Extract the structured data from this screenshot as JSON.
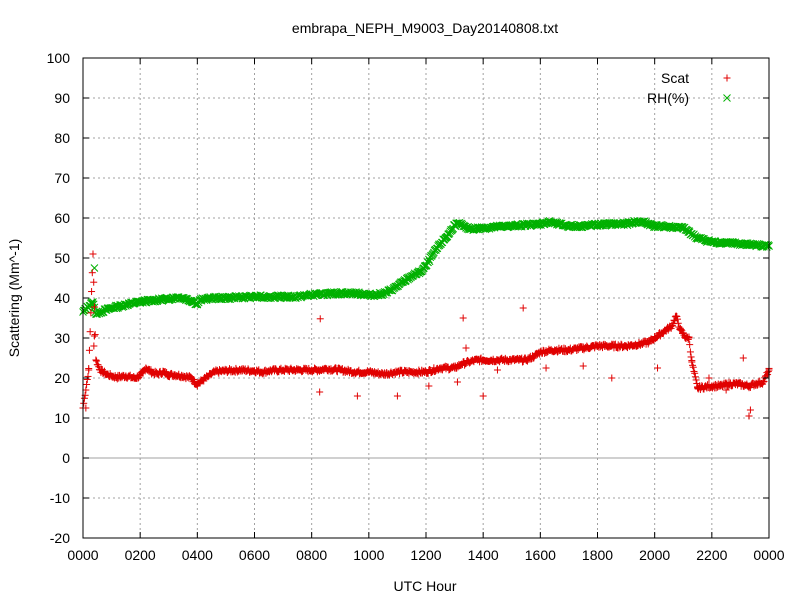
{
  "chart_data": {
    "type": "scatter",
    "title": "embrapa_NEPH_M9003_Day20140808.txt",
    "xlabel": "UTC Hour",
    "ylabel": "Scattering (Mm^-1)",
    "xlim": [
      0,
      24
    ],
    "ylim": [
      -20,
      100
    ],
    "x_ticks": [
      {
        "value": 0,
        "label": "0000"
      },
      {
        "value": 2,
        "label": "0200"
      },
      {
        "value": 4,
        "label": "0400"
      },
      {
        "value": 6,
        "label": "0600"
      },
      {
        "value": 8,
        "label": "0800"
      },
      {
        "value": 10,
        "label": "1000"
      },
      {
        "value": 12,
        "label": "1200"
      },
      {
        "value": 14,
        "label": "1400"
      },
      {
        "value": 16,
        "label": "1600"
      },
      {
        "value": 18,
        "label": "1800"
      },
      {
        "value": 20,
        "label": "2000"
      },
      {
        "value": 22,
        "label": "2200"
      },
      {
        "value": 24,
        "label": "0000"
      }
    ],
    "y_ticks": [
      {
        "value": -20,
        "label": "-20"
      },
      {
        "value": -10,
        "label": "-10"
      },
      {
        "value": 0,
        "label": "0"
      },
      {
        "value": 10,
        "label": "10"
      },
      {
        "value": 20,
        "label": "20"
      },
      {
        "value": 30,
        "label": "30"
      },
      {
        "value": 40,
        "label": "40"
      },
      {
        "value": 50,
        "label": "50"
      },
      {
        "value": 60,
        "label": "60"
      },
      {
        "value": 70,
        "label": "70"
      },
      {
        "value": 80,
        "label": "80"
      },
      {
        "value": 90,
        "label": "90"
      },
      {
        "value": 100,
        "label": "100"
      }
    ],
    "grid": true,
    "zero_line": true,
    "legend_position": "top-right",
    "series": [
      {
        "name": "Scat",
        "marker": "plus",
        "color": "#e00000",
        "x": [
          0.0,
          0.2,
          0.35,
          0.45,
          0.6,
          0.8,
          1.0,
          1.2,
          1.5,
          1.8,
          2.0,
          2.1,
          2.2,
          2.4,
          2.6,
          2.8,
          3.0,
          3.2,
          3.5,
          3.8,
          3.9,
          4.0,
          4.2,
          4.4,
          4.6,
          5.0,
          5.5,
          6.0,
          6.3,
          6.5,
          7.0,
          7.5,
          8.0,
          8.25,
          8.5,
          9.0,
          9.5,
          10.0,
          10.5,
          11.0,
          11.5,
          12.0,
          12.5,
          13.0,
          13.25,
          13.5,
          13.8,
          14.0,
          14.5,
          15.0,
          15.5,
          15.8,
          16.0,
          16.5,
          17.0,
          17.5,
          17.8,
          18.0,
          18.5,
          19.0,
          19.5,
          19.8,
          20.0,
          20.3,
          20.6,
          20.75,
          20.9,
          21.1,
          21.2,
          21.3,
          21.5,
          21.8,
          22.0,
          22.3,
          22.6,
          22.9,
          23.3,
          23.5,
          23.8,
          24.0,
          0.1,
          0.38,
          0.4,
          8.3,
          8.28,
          9.6,
          11.0,
          12.1,
          13.1,
          13.3,
          13.4,
          14.0,
          14.5,
          15.4,
          16.2,
          17.5,
          18.5,
          20.1,
          21.9,
          22.5,
          23.1,
          23.3,
          23.35
        ],
        "y": [
          12.5,
          22.0,
          51.0,
          24.5,
          22.0,
          21.0,
          20.5,
          20.2,
          20.5,
          20.0,
          20.5,
          21.5,
          22.5,
          21.5,
          21.0,
          21.5,
          20.8,
          20.8,
          20.5,
          20.0,
          19.0,
          18.5,
          19.5,
          20.5,
          21.5,
          21.8,
          22.0,
          21.8,
          21.5,
          21.8,
          22.0,
          22.0,
          22.0,
          22.0,
          22.3,
          22.0,
          21.5,
          21.5,
          21.0,
          21.5,
          21.5,
          21.5,
          22.5,
          22.5,
          23.5,
          24.0,
          24.5,
          24.5,
          24.5,
          24.5,
          24.5,
          25.5,
          26.5,
          27.0,
          27.0,
          27.5,
          27.8,
          28.0,
          28.0,
          28.0,
          28.5,
          29.0,
          30.0,
          31.5,
          33.0,
          35.5,
          32.0,
          30.0,
          30.0,
          24.0,
          17.5,
          17.8,
          18.0,
          18.0,
          18.5,
          18.5,
          18.0,
          18.5,
          19.0,
          22.0,
          12.5,
          28.0,
          30.5,
          34.8,
          16.5,
          15.5,
          15.5,
          18.0,
          19.0,
          35.0,
          27.5,
          15.5,
          22.0,
          37.5,
          22.5,
          23.0,
          20.0,
          22.5,
          20.0,
          17.0,
          25.0,
          10.5,
          12.0
        ]
      },
      {
        "name": "RH(%)",
        "marker": "cross",
        "color": "#00b000",
        "x": [
          0.0,
          0.35,
          0.45,
          0.6,
          0.8,
          1.0,
          1.3,
          1.6,
          2.0,
          2.3,
          2.6,
          3.0,
          3.3,
          3.5,
          3.8,
          4.0,
          4.1,
          4.3,
          4.6,
          5.0,
          5.5,
          6.0,
          6.5,
          7.0,
          7.5,
          8.0,
          8.5,
          9.0,
          9.5,
          10.0,
          10.3,
          10.6,
          10.9,
          11.2,
          11.5,
          11.8,
          12.0,
          12.2,
          12.5,
          12.8,
          13.0,
          13.2,
          13.4,
          13.6,
          14.0,
          14.5,
          15.0,
          15.5,
          16.0,
          16.3,
          16.6,
          17.0,
          17.5,
          18.0,
          18.5,
          19.0,
          19.3,
          19.6,
          20.0,
          20.5,
          21.0,
          21.2,
          21.5,
          22.0,
          22.5,
          23.0,
          23.5,
          24.0,
          0.4
        ],
        "y": [
          36.5,
          39.0,
          36.0,
          36.5,
          37.0,
          37.5,
          38.0,
          38.5,
          39.0,
          39.3,
          39.5,
          39.8,
          40.2,
          40.0,
          39.3,
          38.5,
          39.5,
          39.8,
          40.0,
          40.0,
          40.2,
          40.3,
          40.3,
          40.3,
          40.3,
          40.8,
          41.0,
          41.2,
          41.2,
          40.8,
          40.8,
          41.3,
          42.5,
          44.0,
          45.5,
          46.5,
          48.0,
          50.5,
          53.5,
          56.0,
          58.3,
          58.5,
          57.5,
          57.3,
          57.5,
          57.8,
          58.0,
          58.3,
          58.5,
          59.0,
          58.5,
          58.0,
          58.0,
          58.3,
          58.5,
          58.5,
          59.0,
          59.0,
          58.0,
          57.8,
          57.5,
          56.5,
          55.0,
          54.0,
          53.8,
          53.5,
          53.3,
          53.0,
          47.5
        ]
      }
    ]
  }
}
